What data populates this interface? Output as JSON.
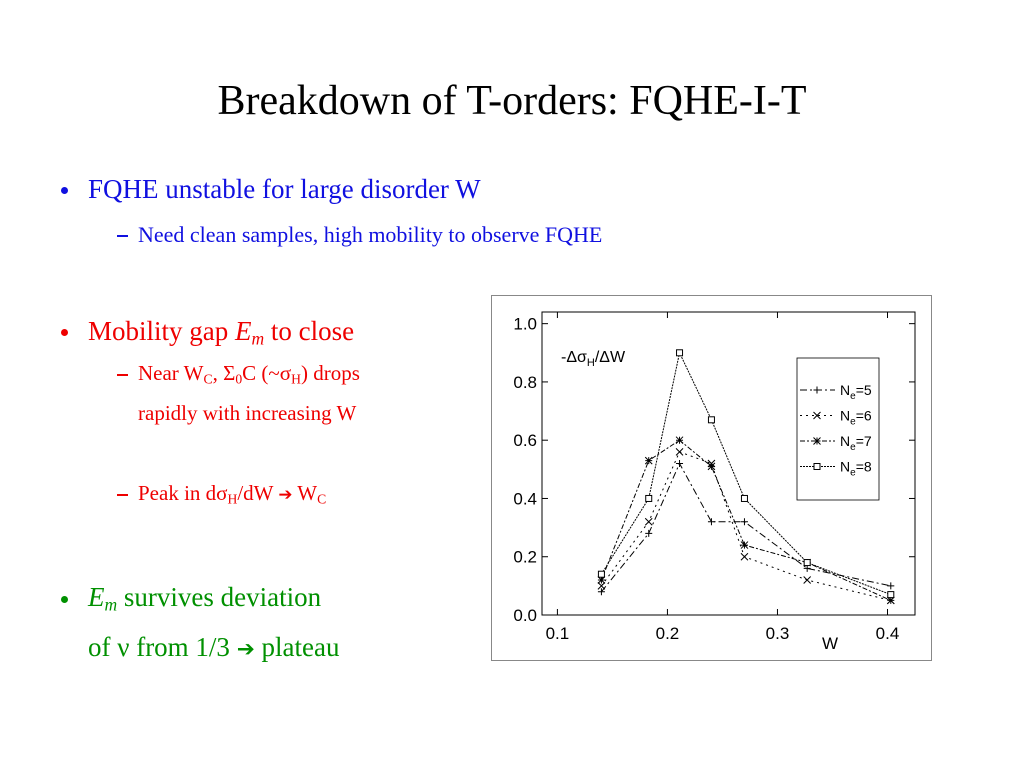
{
  "slide": {
    "title": "Breakdown of T-orders: FQHE-I-T",
    "bullets": [
      {
        "text": [
          "FQHE unstable for large disorder W"
        ],
        "subs": [
          [
            "Need clean samples, high mobility to observe FQHE"
          ]
        ]
      },
      {
        "text": [
          "Mobility gap ",
          "E",
          "m",
          " to close"
        ],
        "subs": [
          [
            "Near W",
            "C",
            ", Σ",
            "0",
            "C (~σ",
            "H",
            ") drops",
            "rapidly with increasing W"
          ],
          [
            "Peak in dσ",
            "H",
            "/dW ",
            "➔",
            " W",
            "C"
          ]
        ]
      },
      {
        "text": [
          "E",
          "m",
          " survives deviation",
          "of ν from 1/3 ",
          "➔",
          " plateau"
        ],
        "subs": []
      }
    ]
  },
  "chart_data": {
    "type": "line",
    "x_label": "W",
    "y_label": [
      "-Δσ",
      "H",
      "/ΔW"
    ],
    "x": [
      0.14,
      0.183,
      0.211,
      0.24,
      0.27,
      0.327,
      0.403
    ],
    "series": [
      {
        "name": "Ne=5",
        "color": "#000000",
        "values": [
          0.08,
          0.28,
          0.52,
          0.32,
          0.32,
          0.16,
          0.1
        ]
      },
      {
        "name": "Ne=6",
        "color": "#000000",
        "values": [
          0.1,
          0.32,
          0.56,
          0.52,
          0.2,
          0.12,
          0.05
        ]
      },
      {
        "name": "Ne=7",
        "color": "#000000",
        "values": [
          0.12,
          0.53,
          0.6,
          0.51,
          0.24,
          0.18,
          0.05
        ]
      },
      {
        "name": "Ne=8",
        "color": "#000000",
        "values": [
          0.14,
          0.4,
          0.9,
          0.67,
          0.4,
          0.18,
          0.07
        ]
      }
    ],
    "xlim": [
      0.086,
      0.425
    ],
    "xticks": [
      0.1,
      0.2,
      0.3,
      0.4
    ],
    "ylim": [
      0,
      1.04
    ],
    "yticks": [
      {
        "value": 0,
        "label": "0.0"
      },
      0.2,
      0.4,
      0.6,
      0.8,
      {
        "value": 1,
        "label": "1.0"
      }
    ],
    "legend": "upper right"
  }
}
